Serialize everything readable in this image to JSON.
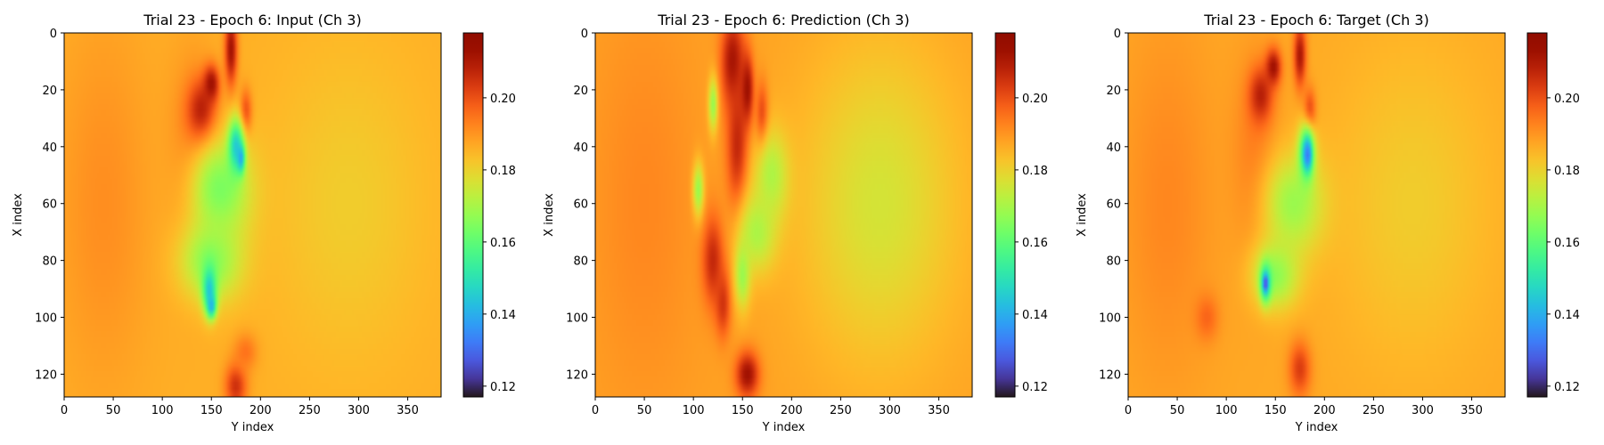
{
  "figure": {
    "panels": [
      {
        "title": "Trial 23 - Epoch 6: Input (Ch 3)",
        "xlabel": "Y index",
        "ylabel": "X index"
      },
      {
        "title": "Trial 23 - Epoch 6: Prediction (Ch 3)",
        "xlabel": "Y index",
        "ylabel": "X index"
      },
      {
        "title": "Trial 23 - Epoch 6: Target (Ch 3)",
        "xlabel": "Y index",
        "ylabel": "X index"
      }
    ]
  },
  "chart_data": [
    {
      "type": "heatmap",
      "title": "Trial 23 - Epoch 6: Input (Ch 3)",
      "xlabel": "Y index",
      "ylabel": "X index",
      "xlim": [
        0,
        384
      ],
      "ylim": [
        128,
        0
      ],
      "xticks": [
        0,
        50,
        100,
        150,
        200,
        250,
        300,
        350
      ],
      "yticks": [
        0,
        20,
        40,
        60,
        80,
        100,
        120
      ],
      "colorbar": {
        "min": 0.117,
        "max": 0.218,
        "ticks": [
          0.12,
          0.14,
          0.16,
          0.18,
          0.2
        ],
        "tick_labels": [
          "0.12",
          "0.14",
          "0.16",
          "0.18",
          "0.20"
        ],
        "colormap": "turbo"
      },
      "background_value": 0.186,
      "features": [
        {
          "x": 40,
          "y": 60,
          "rx": 60,
          "ry": 80,
          "v": 0.191
        },
        {
          "x": 130,
          "y": 45,
          "rx": 30,
          "ry": 45,
          "v": 0.193
        },
        {
          "x": 140,
          "y": 28,
          "rx": 18,
          "ry": 14,
          "v": 0.211
        },
        {
          "x": 150,
          "y": 18,
          "rx": 10,
          "ry": 8,
          "v": 0.214
        },
        {
          "x": 170,
          "y": 6,
          "rx": 8,
          "ry": 16,
          "v": 0.213
        },
        {
          "x": 185,
          "y": 28,
          "rx": 8,
          "ry": 10,
          "v": 0.205
        },
        {
          "x": 160,
          "y": 55,
          "rx": 40,
          "ry": 22,
          "v": 0.163
        },
        {
          "x": 175,
          "y": 40,
          "rx": 10,
          "ry": 12,
          "v": 0.141
        },
        {
          "x": 180,
          "y": 44,
          "rx": 5,
          "ry": 6,
          "v": 0.132
        },
        {
          "x": 150,
          "y": 80,
          "rx": 40,
          "ry": 18,
          "v": 0.165
        },
        {
          "x": 148,
          "y": 90,
          "rx": 9,
          "ry": 10,
          "v": 0.143
        },
        {
          "x": 150,
          "y": 96,
          "rx": 6,
          "ry": 5,
          "v": 0.139
        },
        {
          "x": 175,
          "y": 124,
          "rx": 14,
          "ry": 10,
          "v": 0.206
        },
        {
          "x": 185,
          "y": 112,
          "rx": 15,
          "ry": 8,
          "v": 0.196
        },
        {
          "x": 290,
          "y": 60,
          "rx": 100,
          "ry": 70,
          "v": 0.181
        }
      ]
    },
    {
      "type": "heatmap",
      "title": "Trial 23 - Epoch 6: Prediction (Ch 3)",
      "xlabel": "Y index",
      "ylabel": "X index",
      "xlim": [
        0,
        384
      ],
      "ylim": [
        128,
        0
      ],
      "xticks": [
        0,
        50,
        100,
        150,
        200,
        250,
        300,
        350
      ],
      "yticks": [
        0,
        20,
        40,
        60,
        80,
        100,
        120
      ],
      "colorbar": {
        "min": 0.117,
        "max": 0.218,
        "ticks": [
          0.12,
          0.14,
          0.16,
          0.18,
          0.2
        ],
        "tick_labels": [
          "0.12",
          "0.14",
          "0.16",
          "0.18",
          "0.20"
        ],
        "colormap": "turbo"
      },
      "background_value": 0.188,
      "features": [
        {
          "x": 50,
          "y": 60,
          "rx": 70,
          "ry": 90,
          "v": 0.192
        },
        {
          "x": 140,
          "y": 10,
          "rx": 15,
          "ry": 20,
          "v": 0.212
        },
        {
          "x": 145,
          "y": 40,
          "rx": 14,
          "ry": 30,
          "v": 0.208
        },
        {
          "x": 155,
          "y": 20,
          "rx": 8,
          "ry": 15,
          "v": 0.214
        },
        {
          "x": 170,
          "y": 30,
          "rx": 8,
          "ry": 15,
          "v": 0.206
        },
        {
          "x": 120,
          "y": 80,
          "rx": 14,
          "ry": 20,
          "v": 0.207
        },
        {
          "x": 130,
          "y": 95,
          "rx": 10,
          "ry": 15,
          "v": 0.205
        },
        {
          "x": 155,
          "y": 120,
          "rx": 15,
          "ry": 10,
          "v": 0.213
        },
        {
          "x": 180,
          "y": 50,
          "rx": 22,
          "ry": 20,
          "v": 0.17
        },
        {
          "x": 165,
          "y": 70,
          "rx": 25,
          "ry": 18,
          "v": 0.17
        },
        {
          "x": 105,
          "y": 55,
          "rx": 7,
          "ry": 12,
          "v": 0.168
        },
        {
          "x": 120,
          "y": 25,
          "rx": 6,
          "ry": 12,
          "v": 0.168
        },
        {
          "x": 150,
          "y": 85,
          "rx": 10,
          "ry": 15,
          "v": 0.168
        },
        {
          "x": 290,
          "y": 60,
          "rx": 100,
          "ry": 70,
          "v": 0.176
        }
      ]
    },
    {
      "type": "heatmap",
      "title": "Trial 23 - Epoch 6: Target (Ch 3)",
      "xlabel": "Y index",
      "ylabel": "X index",
      "xlim": [
        0,
        384
      ],
      "ylim": [
        128,
        0
      ],
      "xticks": [
        0,
        50,
        100,
        150,
        200,
        250,
        300,
        350
      ],
      "yticks": [
        0,
        20,
        40,
        60,
        80,
        100,
        120
      ],
      "colorbar": {
        "min": 0.117,
        "max": 0.218,
        "ticks": [
          0.12,
          0.14,
          0.16,
          0.18,
          0.2
        ],
        "tick_labels": [
          "0.12",
          "0.14",
          "0.16",
          "0.18",
          "0.20"
        ],
        "colormap": "turbo"
      },
      "background_value": 0.187,
      "features": [
        {
          "x": 40,
          "y": 60,
          "rx": 60,
          "ry": 80,
          "v": 0.192
        },
        {
          "x": 130,
          "y": 45,
          "rx": 30,
          "ry": 45,
          "v": 0.194
        },
        {
          "x": 135,
          "y": 22,
          "rx": 15,
          "ry": 12,
          "v": 0.209
        },
        {
          "x": 148,
          "y": 12,
          "rx": 10,
          "ry": 8,
          "v": 0.213
        },
        {
          "x": 175,
          "y": 8,
          "rx": 8,
          "ry": 14,
          "v": 0.212
        },
        {
          "x": 185,
          "y": 28,
          "rx": 8,
          "ry": 10,
          "v": 0.207
        },
        {
          "x": 170,
          "y": 60,
          "rx": 40,
          "ry": 22,
          "v": 0.167
        },
        {
          "x": 182,
          "y": 42,
          "rx": 10,
          "ry": 12,
          "v": 0.139
        },
        {
          "x": 183,
          "y": 43,
          "rx": 5,
          "ry": 6,
          "v": 0.124
        },
        {
          "x": 150,
          "y": 85,
          "rx": 30,
          "ry": 15,
          "v": 0.166
        },
        {
          "x": 140,
          "y": 88,
          "rx": 7,
          "ry": 8,
          "v": 0.14
        },
        {
          "x": 140,
          "y": 88,
          "rx": 3,
          "ry": 3,
          "v": 0.123
        },
        {
          "x": 175,
          "y": 118,
          "rx": 14,
          "ry": 12,
          "v": 0.204
        },
        {
          "x": 80,
          "y": 100,
          "rx": 15,
          "ry": 10,
          "v": 0.197
        },
        {
          "x": 290,
          "y": 60,
          "rx": 100,
          "ry": 70,
          "v": 0.181
        }
      ]
    }
  ]
}
